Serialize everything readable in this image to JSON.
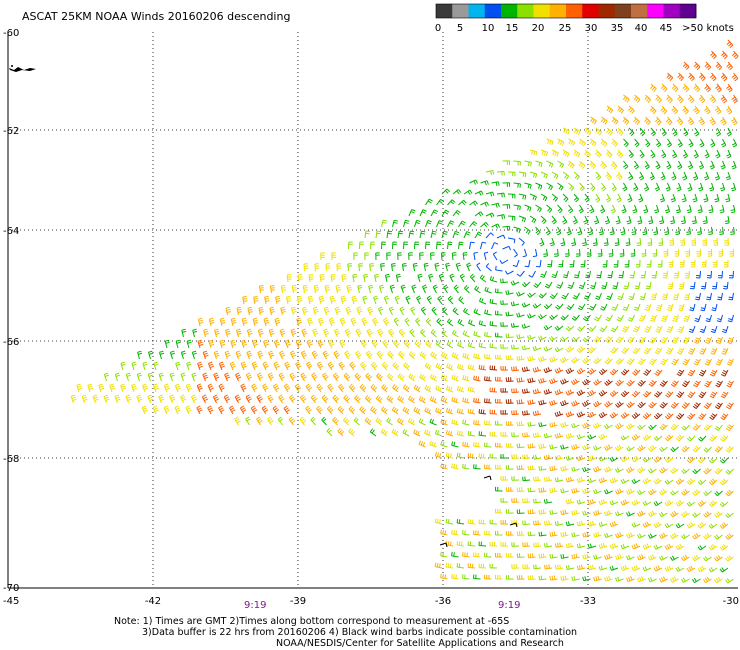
{
  "title": "ASCAT 25KM NOAA Winds 20160206 descending",
  "colorbar": {
    "colors": [
      "#3a3a3a",
      "#9a9a9a",
      "#00b4f0",
      "#0050f0",
      "#00b400",
      "#8ce000",
      "#f0e000",
      "#ffb000",
      "#ff6000",
      "#e00000",
      "#a02800",
      "#804020",
      "#c07040",
      "#ff00ff",
      "#a000c0",
      "#600090"
    ],
    "labels": [
      "0",
      "5",
      "10",
      "15",
      "20",
      "25",
      "30",
      "35",
      "40",
      "45",
      ">50 knots"
    ]
  },
  "lat_labels": [
    "-60",
    "-62",
    "-64",
    "-66",
    "-68",
    "-70"
  ],
  "lon_labels": [
    "-45",
    "-42",
    "-39",
    "-36",
    "-33",
    "-30"
  ],
  "times": [
    "9:19",
    "9:19"
  ],
  "note": {
    "line1": "Note: 1) Times are GMT 2)Times along bottom correspond to measurement at -65S",
    "line2": "3)Data buffer is 22 hrs from 20160206 4) Black wind barbs indicate possible contamination",
    "line3": "NOAA/NESDIS/Center for Satellite Applications and Research"
  }
}
